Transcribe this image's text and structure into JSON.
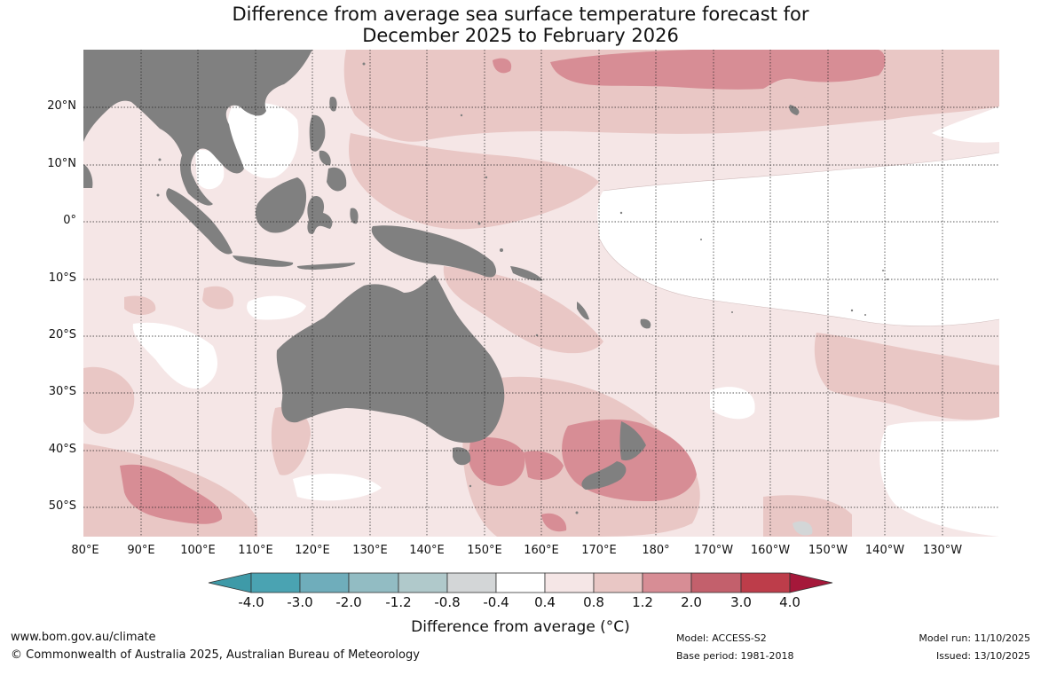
{
  "title": {
    "line1": "Difference from average sea surface temperature forecast for",
    "line2": "December 2025 to February 2026"
  },
  "map": {
    "land_color": "#808080",
    "ocean_background": "#ffffff",
    "latitude_labels": [
      "20°N",
      "10°N",
      "0°",
      "10°S",
      "20°S",
      "30°S",
      "40°S",
      "50°S"
    ],
    "longitude_labels": [
      "80°E",
      "90°E",
      "100°E",
      "110°E",
      "120°E",
      "130°E",
      "140°E",
      "150°E",
      "160°E",
      "170°E",
      "180°",
      "170°W",
      "160°W",
      "150°W",
      "140°W",
      "130°W"
    ],
    "anomaly_colors": {
      "0.4_to_0.8": "#f5e6e6",
      "0.8_to_1.2": "#e9c7c5",
      "1.2_to_2.0": "#d78d95",
      "2.0_to_3.0": "#c3606c",
      "-0.8_to_-0.4": "#d3d6d7"
    }
  },
  "colorbar": {
    "ticks": [
      "-4.0",
      "-3.0",
      "-2.0",
      "-1.2",
      "-0.8",
      "-0.4",
      "0.4",
      "0.8",
      "1.2",
      "2.0",
      "3.0",
      "4.0"
    ],
    "colors": [
      "#3e9aa8",
      "#4aa3b2",
      "#6fadbb",
      "#92bcc3",
      "#b0c9cb",
      "#d3d6d7",
      "#ffffff",
      "#f5e6e6",
      "#e9c7c5",
      "#d78d95",
      "#c3606c",
      "#bd3d4a",
      "#a5183a"
    ],
    "title": "Difference from average (°C)"
  },
  "footer": {
    "url": "www.bom.gov.au/climate",
    "copyright": "© Commonwealth of Australia 2025, Australian Bureau of Meteorology",
    "model": "Model: ACCESS-S2",
    "base_period": "Base period: 1981-2018",
    "model_run": "Model run: 11/10/2025",
    "issued": "Issued: 13/10/2025"
  }
}
